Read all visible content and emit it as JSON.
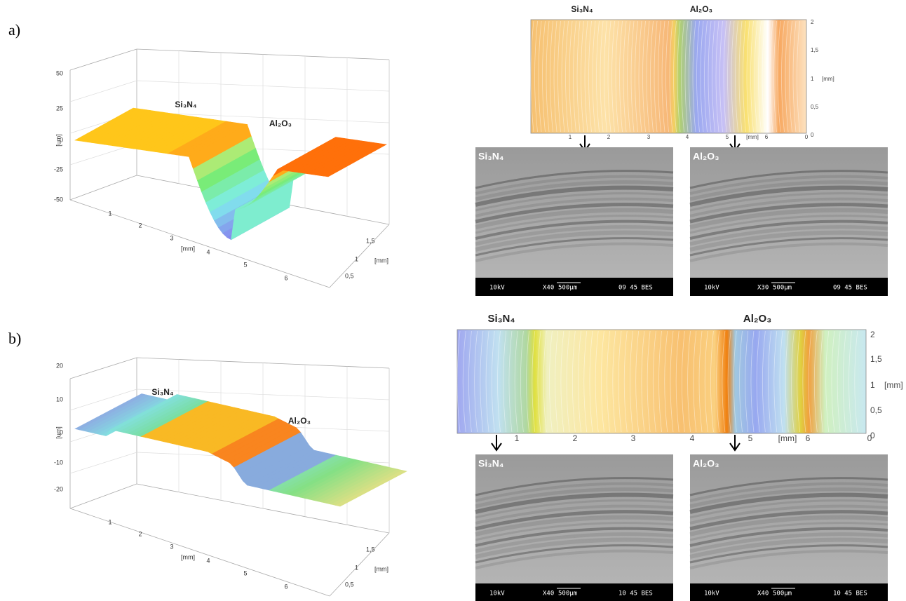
{
  "panels": [
    {
      "label": "a)",
      "surface": {
        "z_ticks": [
          "50",
          "25",
          "0",
          "-25",
          "-50"
        ],
        "z_unit": "[um]",
        "x_ticks": [
          "1",
          "2",
          "3",
          "4",
          "5",
          "6"
        ],
        "x_unit": "[mm]",
        "y_ticks": [
          "1,5",
          "1",
          "0,5"
        ],
        "y_unit": "[mm]",
        "material_labels": [
          "Si₃N₄",
          "Al₂O₃"
        ]
      },
      "contour": {
        "material_labels": [
          "Si₃N₄",
          "Al₂O₃"
        ],
        "y_ticks": [
          "2",
          "1,5",
          "1",
          "0,5",
          "0"
        ],
        "y_unit": "[mm]",
        "x_ticks": [
          "1",
          "2",
          "3",
          "4",
          "5",
          "6",
          "0"
        ],
        "x_unit": "[mm]"
      },
      "sem": [
        {
          "label": "Si₃N₄",
          "footer": [
            "10kV",
            "X40",
            "500μm",
            "09 45 BES"
          ]
        },
        {
          "label": "Al₂O₃",
          "footer": [
            "10kV",
            "X30",
            "500μm",
            "09 45 BES"
          ]
        }
      ]
    },
    {
      "label": "b)",
      "surface": {
        "z_ticks": [
          "20",
          "10",
          "0",
          "-10",
          "-20"
        ],
        "z_unit": "[um]",
        "x_ticks": [
          "1",
          "2",
          "3",
          "4",
          "5",
          "6"
        ],
        "x_unit": "[mm]",
        "y_ticks": [
          "1,5",
          "1",
          "0,5"
        ],
        "y_unit": "[mm]",
        "material_labels": [
          "Si₃N₄",
          "Al₂O₃"
        ]
      },
      "contour": {
        "material_labels": [
          "Si₃N₄",
          "Al₂O₃"
        ],
        "y_ticks": [
          "2",
          "1,5",
          "1",
          "0,5",
          "0"
        ],
        "y_unit": "[mm]",
        "x_ticks": [
          "1",
          "2",
          "3",
          "4",
          "5",
          "6",
          "0"
        ],
        "x_unit": "[mm]"
      },
      "sem": [
        {
          "label": "Si₃N₄",
          "footer": [
            "10kV",
            "X40",
            "500μm",
            "10 45 BES"
          ]
        },
        {
          "label": "Al₂O₃",
          "footer": [
            "10kV",
            "X40",
            "500μm",
            "10 45 BES"
          ]
        }
      ]
    }
  ]
}
